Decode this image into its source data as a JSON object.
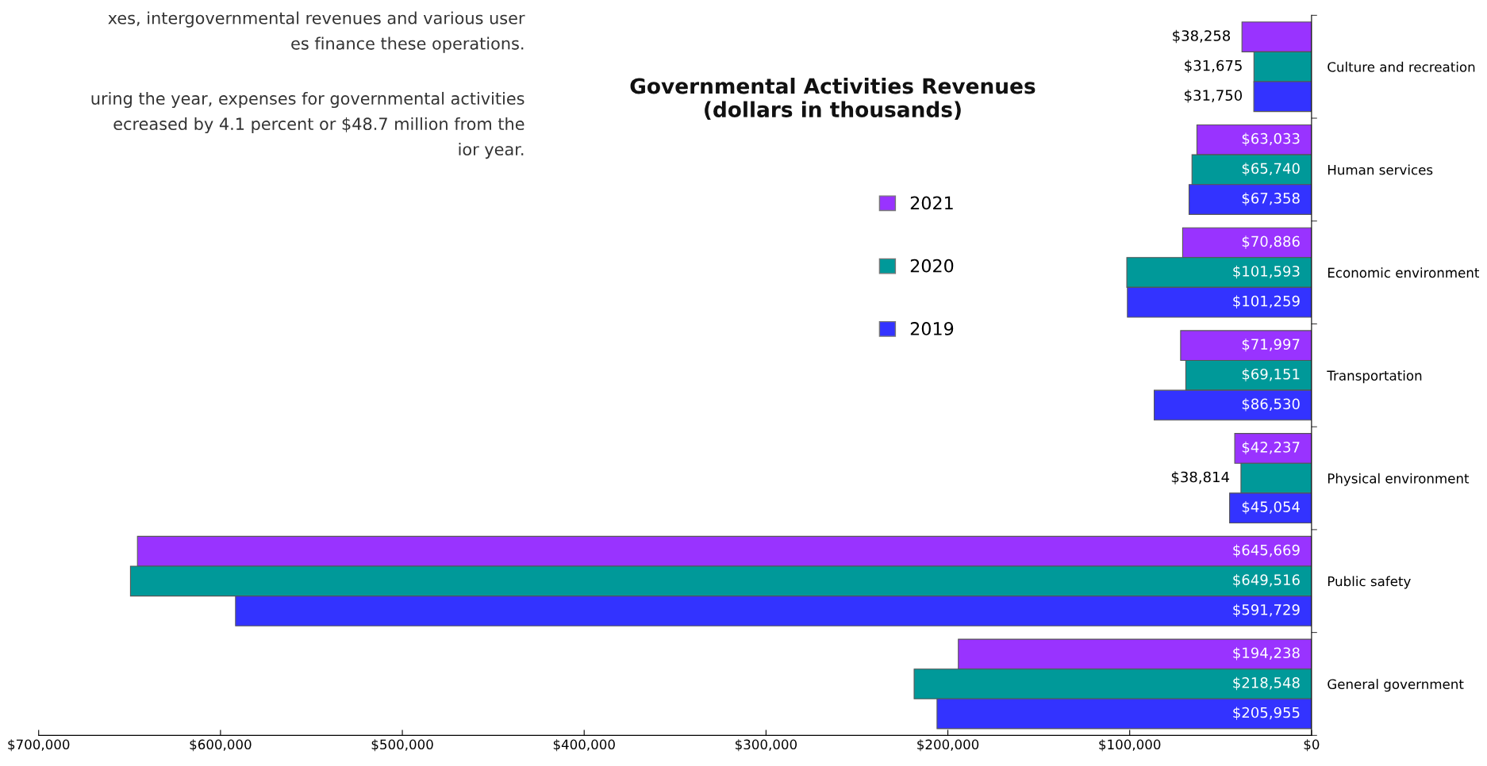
{
  "chart_data": {
    "type": "bar",
    "orientation": "horizontal",
    "title": "Governmental Activities Revenues\n(dollars in thousands)",
    "categories": [
      "Culture and recreation",
      "Human services",
      "Economic environment",
      "Transportation",
      "Physical environment",
      "Public safety",
      "General government"
    ],
    "series": [
      {
        "name": "2021",
        "color": "#9933ff",
        "values": [
          38258,
          63033,
          70886,
          71997,
          42237,
          645669,
          194238
        ],
        "value_labels": [
          "$38,258",
          "$63,033",
          "$70,886",
          "$71,997",
          "$42,237",
          "$645,669",
          "$194,238"
        ]
      },
      {
        "name": "2020",
        "color": "#009999",
        "values": [
          31675,
          65740,
          101593,
          69151,
          38814,
          649516,
          218548
        ],
        "value_labels": [
          "$31,675",
          "$65,740",
          "$101,593",
          "$69,151",
          "$38,814",
          "$649,516",
          "$218,548"
        ]
      },
      {
        "name": "2019",
        "color": "#3333ff",
        "values": [
          31750,
          67358,
          101259,
          86530,
          45054,
          591729,
          205955
        ],
        "value_labels": [
          "$31,750",
          "$67,358",
          "$101,259",
          "$86,530",
          "$45,054",
          "$591,729",
          "$205,955"
        ]
      }
    ],
    "xlim": [
      700000,
      0
    ],
    "xticks": [
      {
        "value": 700000,
        "label": "$700,000"
      },
      {
        "value": 600000,
        "label": "$600,000"
      },
      {
        "value": 500000,
        "label": "$500,000"
      },
      {
        "value": 400000,
        "label": "$400,000"
      },
      {
        "value": 300000,
        "label": "$300,000"
      },
      {
        "value": 200000,
        "label": "$200,000"
      },
      {
        "value": 100000,
        "label": "$100,000"
      },
      {
        "value": 0,
        "label": "$0"
      }
    ],
    "annotations": [
      "xes, intergovernmental revenues and various user\nes finance these operations.",
      "uring the year, expenses for governmental activities\necreased by 4.1 percent or $48.7 million from the\nior year."
    ],
    "legend": "center",
    "grid": false
  }
}
